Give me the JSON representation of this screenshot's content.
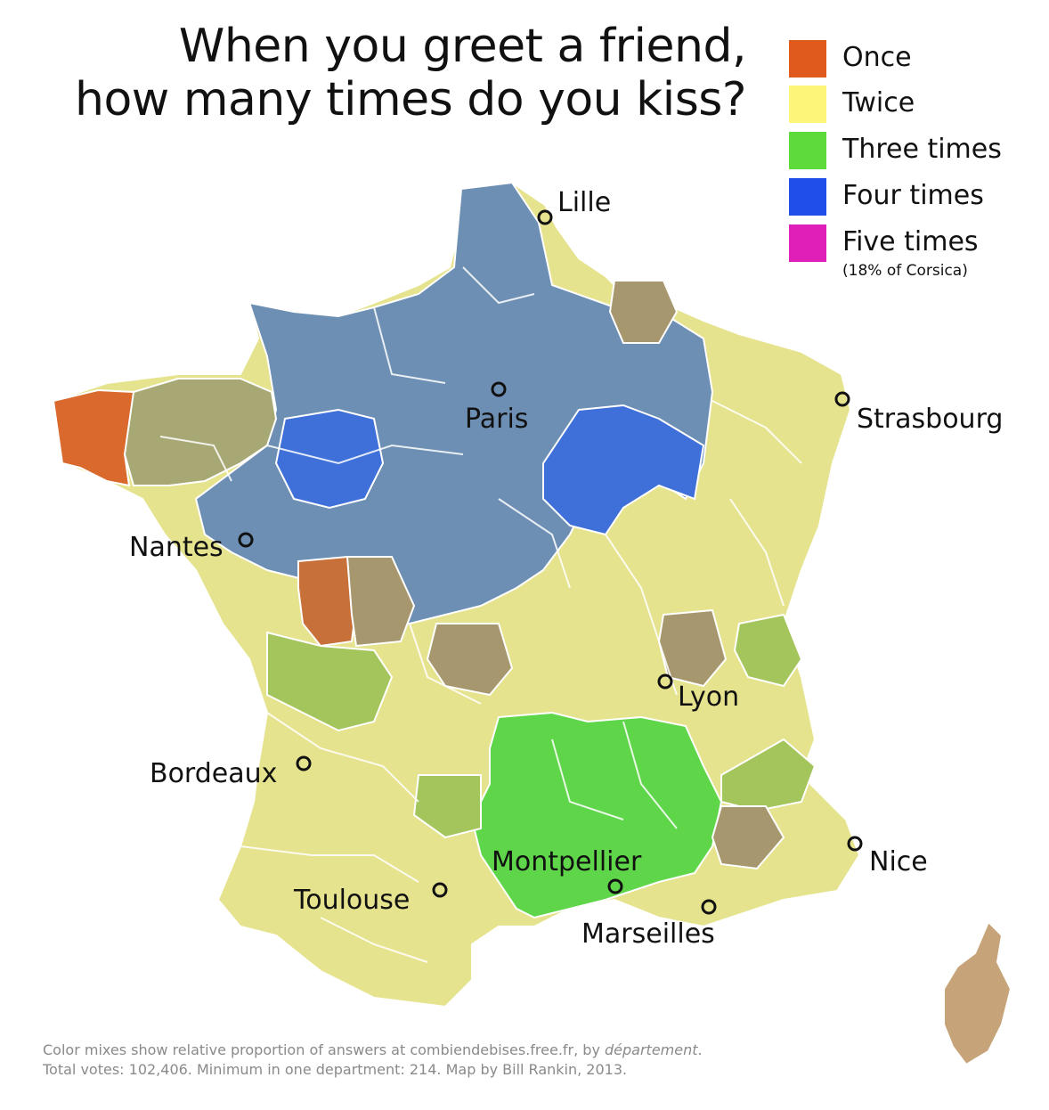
{
  "title": {
    "line1": "When you greet a friend,",
    "line2": "how many times do you kiss?"
  },
  "legend": [
    {
      "label": "Once",
      "color": "#e05a1e"
    },
    {
      "label": "Twice",
      "color": "#fbf57a"
    },
    {
      "label": "Three times",
      "color": "#5ddb3a"
    },
    {
      "label": "Four times",
      "color": "#1f4fe8"
    },
    {
      "label": "Five times",
      "color": "#df1fb7",
      "note": "(18% of Corsica)"
    }
  ],
  "cities": {
    "lille": "Lille",
    "paris": "Paris",
    "strasbourg": "Strasbourg",
    "nantes": "Nantes",
    "lyon": "Lyon",
    "bordeaux": "Bordeaux",
    "montpellier": "Montpellier",
    "nice": "Nice",
    "toulouse": "Toulouse",
    "marseilles": "Marseilles"
  },
  "footer": {
    "line1_main": "Color mixes show relative proportion of answers at combiendebises.free.fr, by ",
    "line1_italic": "département",
    "line1_end": ".",
    "line2": "Total votes: 102,406. Minimum in one department: 214. Map by Bill Rankin, 2013."
  },
  "region_colors": {
    "bretagne_west": "#d9692c",
    "bretagne_east": "#a8a874",
    "four_zone": "#6d8fb4",
    "four_strong": "#3f6fd8",
    "twice_zone": "#e6e38e",
    "three_zone": "#5fd64a",
    "mix_green": "#a4c45c",
    "mix_brown": "#a7976e",
    "vendee_orange": "#c8703a",
    "corsica": "#c7a37a",
    "border": "#ffffff",
    "city_marker": "#111111"
  }
}
